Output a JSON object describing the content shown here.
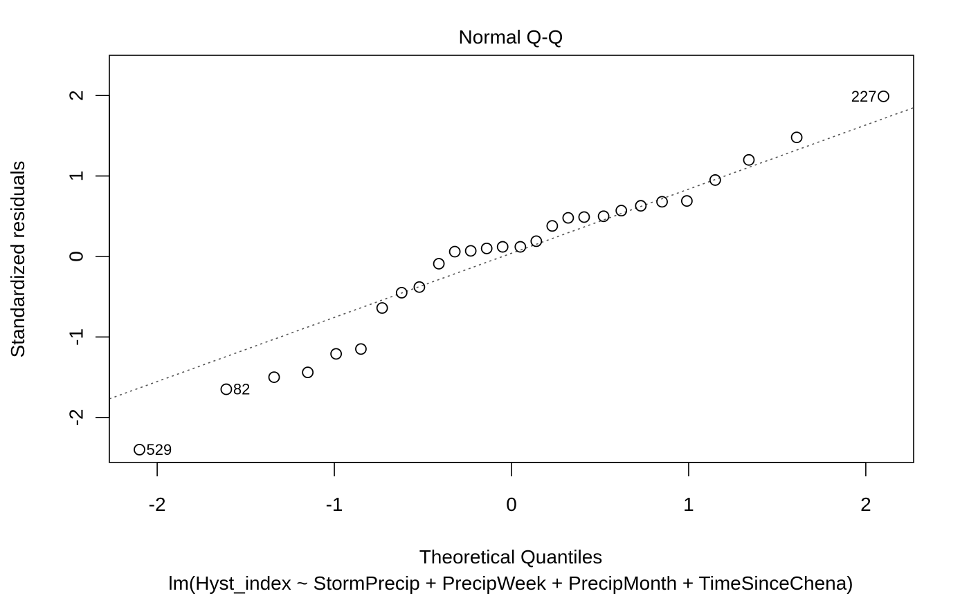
{
  "chart_data": {
    "type": "scatter",
    "title": "Normal Q-Q",
    "xlabel": "Theoretical Quantiles",
    "ylabel": "Standardized residuals",
    "subtitle": "lm(Hyst_index ~ StormPrecip + PrecipWeek + PrecipMonth + TimeSinceChena)",
    "xlim": [
      -2.27,
      2.27
    ],
    "ylim": [
      -2.56,
      2.5
    ],
    "xticks": [
      -2,
      -1,
      0,
      1,
      2
    ],
    "yticks": [
      -2,
      -1,
      0,
      1,
      2
    ],
    "grid": false,
    "points": [
      {
        "x": -2.1,
        "y": -2.4,
        "label": "529"
      },
      {
        "x": -1.61,
        "y": -1.65,
        "label": "82"
      },
      {
        "x": -1.34,
        "y": -1.5
      },
      {
        "x": -1.15,
        "y": -1.44
      },
      {
        "x": -0.99,
        "y": -1.21
      },
      {
        "x": -0.85,
        "y": -1.15
      },
      {
        "x": -0.73,
        "y": -0.64
      },
      {
        "x": -0.62,
        "y": -0.45
      },
      {
        "x": -0.52,
        "y": -0.38
      },
      {
        "x": -0.41,
        "y": -0.09
      },
      {
        "x": -0.32,
        "y": 0.06
      },
      {
        "x": -0.23,
        "y": 0.07
      },
      {
        "x": -0.14,
        "y": 0.1
      },
      {
        "x": -0.05,
        "y": 0.12
      },
      {
        "x": 0.05,
        "y": 0.12
      },
      {
        "x": 0.14,
        "y": 0.19
      },
      {
        "x": 0.23,
        "y": 0.38
      },
      {
        "x": 0.32,
        "y": 0.48
      },
      {
        "x": 0.41,
        "y": 0.49
      },
      {
        "x": 0.52,
        "y": 0.5
      },
      {
        "x": 0.62,
        "y": 0.57
      },
      {
        "x": 0.73,
        "y": 0.63
      },
      {
        "x": 0.85,
        "y": 0.68
      },
      {
        "x": 0.99,
        "y": 0.69
      },
      {
        "x": 1.15,
        "y": 0.95
      },
      {
        "x": 1.34,
        "y": 1.2
      },
      {
        "x": 1.61,
        "y": 1.48
      },
      {
        "x": 2.1,
        "y": 1.99,
        "label": "227"
      }
    ],
    "reference_line": {
      "intercept": 0.04,
      "slope": 0.797,
      "style": "dotted",
      "color": "#555555"
    }
  }
}
